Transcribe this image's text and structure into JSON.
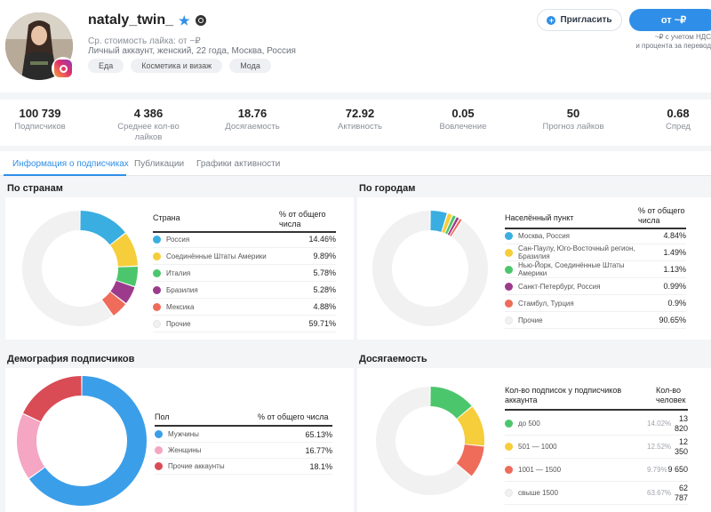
{
  "profile": {
    "username": "nataly_twin_",
    "price_line": "Ср. стоимость лайка: от ~₽",
    "info_line": "Личный аккаунт, женский, 22 года, Москва, Россия",
    "tags": [
      "Еда",
      "Косметика и визаж",
      "Мода"
    ]
  },
  "actions": {
    "invite_label": "Пригласить",
    "price_label": "от ~₽",
    "price_note_1": "~₽ с учетом НДС",
    "price_note_2": "и процента за перевод"
  },
  "stats": [
    {
      "value": "100 739",
      "label": "Подписчиков"
    },
    {
      "value": "4 386",
      "label": "Среднее кол-во лайков"
    },
    {
      "value": "18.76",
      "label": "Досягаемость"
    },
    {
      "value": "72.92",
      "label": "Активность"
    },
    {
      "value": "0.05",
      "label": "Вовлечение"
    },
    {
      "value": "50",
      "label": "Прогноз лайков"
    },
    {
      "value": "0.68",
      "label": "Спред"
    }
  ],
  "tabs": [
    "Информация о подписчиках",
    "Публикации",
    "Графики активности"
  ],
  "countries": {
    "title": "По странам",
    "col_name": "Страна",
    "col_pct": "% от общего числа",
    "rows": [
      {
        "label": "Россия",
        "value": "14.46%",
        "pct": 14.46,
        "color": "#3aaee0"
      },
      {
        "label": "Соединённые Штаты Америки",
        "value": "9.89%",
        "pct": 9.89,
        "color": "#f6cd3a"
      },
      {
        "label": "Италия",
        "value": "5.78%",
        "pct": 5.78,
        "color": "#4cc66c"
      },
      {
        "label": "Бразилия",
        "value": "5.28%",
        "pct": 5.28,
        "color": "#9c3b8c"
      },
      {
        "label": "Мексика",
        "value": "4.88%",
        "pct": 4.88,
        "color": "#ef6b5a"
      },
      {
        "label": "Прочие",
        "value": "59.71%",
        "pct": 59.71,
        "color": "#f1f1f1"
      }
    ]
  },
  "cities": {
    "title": "По городам",
    "col_name": "Населённый пункт",
    "col_pct": "% от общего числа",
    "rows": [
      {
        "label": "Москва, Россия",
        "value": "4.84%",
        "pct": 4.84,
        "color": "#3aaee0"
      },
      {
        "label": "Сан-Паулу, Юго-Восточный регион, Бразилия",
        "value": "1.49%",
        "pct": 1.49,
        "color": "#f6cd3a"
      },
      {
        "label": "Нью-Йорк, Соединённые Штаты Америки",
        "value": "1.13%",
        "pct": 1.13,
        "color": "#4cc66c"
      },
      {
        "label": "Санкт-Петербург, Россия",
        "value": "0.99%",
        "pct": 0.99,
        "color": "#9c3b8c"
      },
      {
        "label": "Стамбул, Турция",
        "value": "0.9%",
        "pct": 0.9,
        "color": "#ef6b5a"
      },
      {
        "label": "Прочие",
        "value": "90.65%",
        "pct": 90.65,
        "color": "#f1f1f1"
      }
    ]
  },
  "demography": {
    "title": "Демография подписчиков",
    "col_name": "Пол",
    "col_pct": "% от общего числа",
    "rows": [
      {
        "label": "Мужчины",
        "value": "65.13%",
        "pct": 65.13,
        "color": "#3b9ee9"
      },
      {
        "label": "Женщины",
        "value": "16.77%",
        "pct": 16.77,
        "color": "#f4a6c2"
      },
      {
        "label": "Прочие аккаунты",
        "value": "18.1%",
        "pct": 18.1,
        "color": "#d94b55"
      }
    ]
  },
  "reach": {
    "title": "Досягаемость",
    "col_name": "Кол-во подписок у подписчиков аккаунта",
    "col_count": "Кол-во человек",
    "rows": [
      {
        "label": "до 500",
        "pct_label": "14.02%",
        "count_1": "13",
        "count_2": "820",
        "pct": 14.02,
        "color": "#4cc66c"
      },
      {
        "label": "501 — 1000",
        "pct_label": "12.52%",
        "count_1": "12",
        "count_2": "350",
        "pct": 12.52,
        "color": "#f6cd3a"
      },
      {
        "label": "1001 — 1500",
        "pct_label": "9.79%",
        "count_1": "9 650",
        "count_2": "",
        "pct": 9.79,
        "color": "#ef6b5a"
      },
      {
        "label": "свыше 1500",
        "pct_label": "63.67%",
        "count_1": "62",
        "count_2": "787",
        "pct": 63.67,
        "color": "#f1f1f1"
      }
    ]
  }
}
